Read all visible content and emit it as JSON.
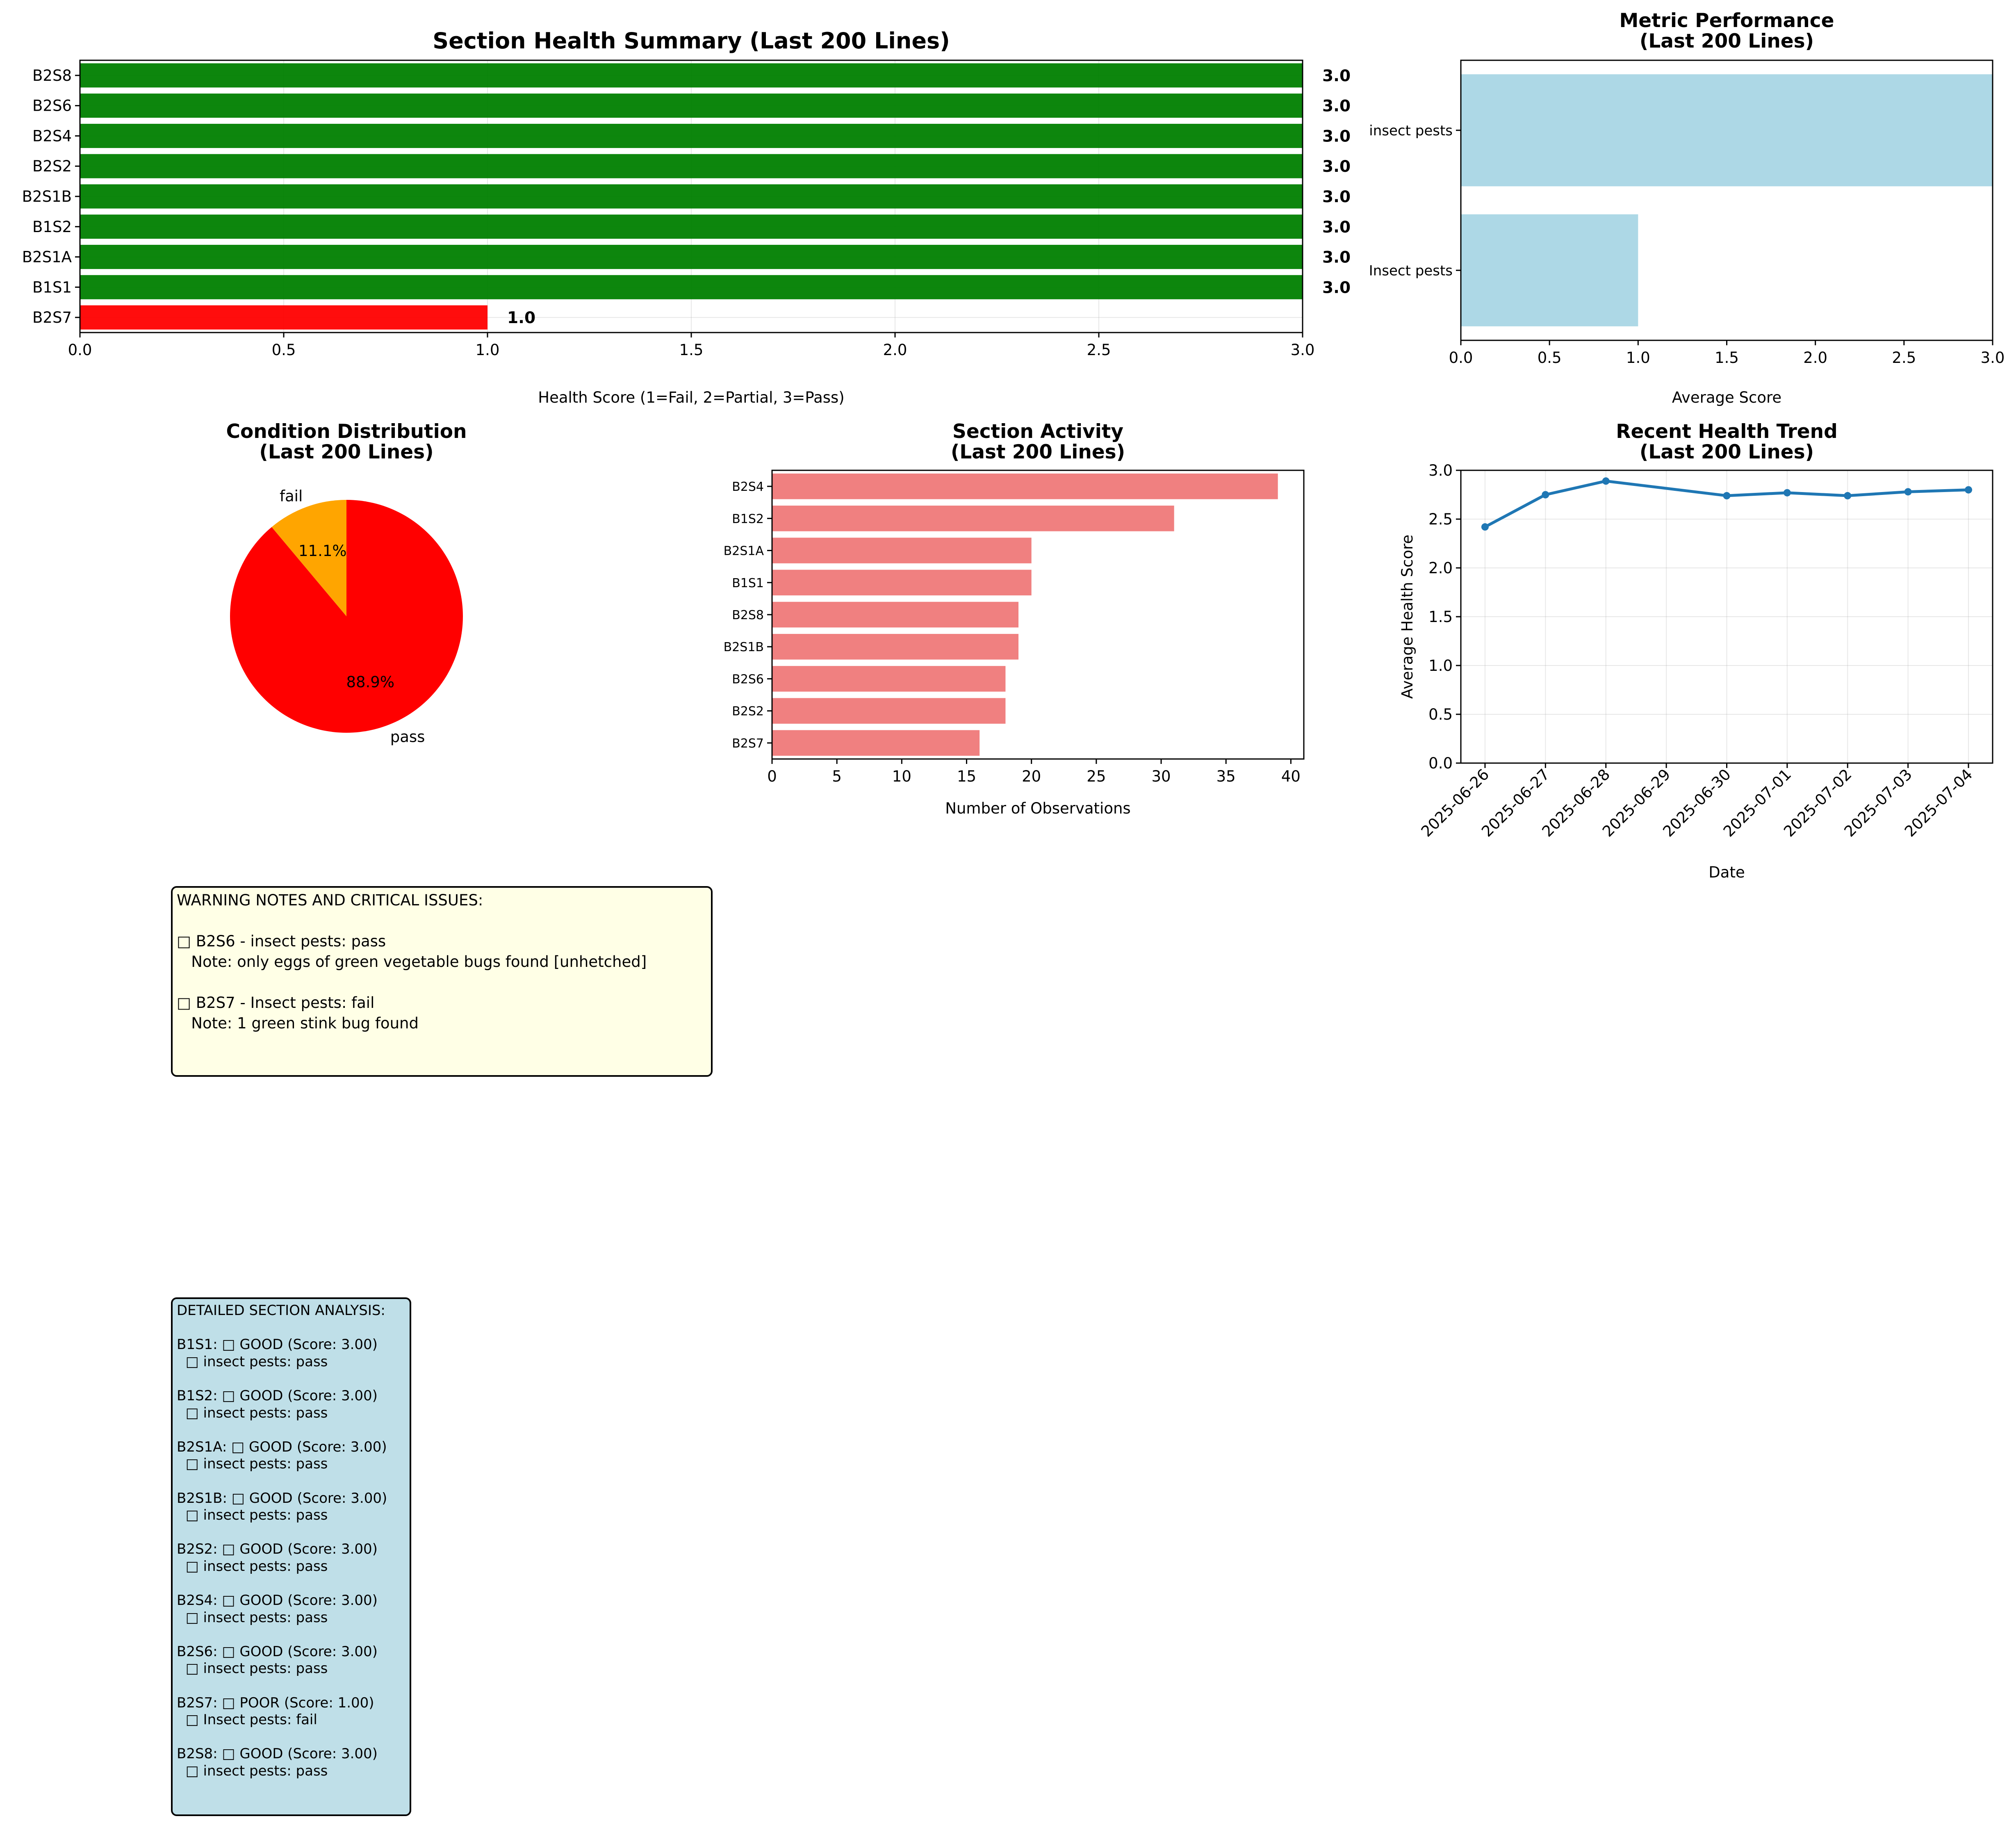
{
  "chart_data": [
    {
      "type": "bar",
      "orientation": "horizontal",
      "title": "Section Health Summary (Last 200 Lines)",
      "xlabel": "Health Score (1=Fail, 2=Partial, 3=Pass)",
      "ylabel": "",
      "xlim": [
        0,
        3
      ],
      "xticks": [
        "0.0",
        "0.5",
        "1.0",
        "1.5",
        "2.0",
        "2.5",
        "3.0"
      ],
      "categories": [
        "B2S8",
        "B2S6",
        "B2S4",
        "B2S2",
        "B2S1B",
        "B1S2",
        "B2S1A",
        "B1S1",
        "B2S7"
      ],
      "values": [
        3.0,
        3.0,
        3.0,
        3.0,
        3.0,
        3.0,
        3.0,
        3.0,
        1.0
      ],
      "value_labels": [
        "3.0",
        "3.0",
        "3.0",
        "3.0",
        "3.0",
        "3.0",
        "3.0",
        "3.0",
        "1.0"
      ],
      "colors": [
        "#008000",
        "#008000",
        "#008000",
        "#008000",
        "#008000",
        "#008000",
        "#008000",
        "#008000",
        "#ff0000"
      ],
      "grid": true
    },
    {
      "type": "bar",
      "orientation": "horizontal",
      "title": "Metric Performance\n(Last 200 Lines)",
      "xlabel": "Average Score",
      "ylabel": "",
      "xlim": [
        0,
        3
      ],
      "xticks": [
        "0.0",
        "0.5",
        "1.0",
        "1.5",
        "2.0",
        "2.5",
        "3.0"
      ],
      "categories": [
        "insect pests",
        "Insect pests"
      ],
      "values": [
        3.0,
        1.0
      ],
      "color": "#add8e6"
    },
    {
      "type": "pie",
      "title": "Condition Distribution\n(Last 200 Lines)",
      "labels": [
        "fail",
        "pass"
      ],
      "values": [
        11.1,
        88.9
      ],
      "pct_labels": [
        "11.1%",
        "88.9%"
      ],
      "colors": [
        "#ffa500",
        "#ff0000"
      ]
    },
    {
      "type": "bar",
      "orientation": "horizontal",
      "title": "Section Activity\n(Last 200 Lines)",
      "xlabel": "Number of Observations",
      "ylabel": "",
      "xlim": [
        0,
        41
      ],
      "xticks": [
        0,
        5,
        10,
        15,
        20,
        25,
        30,
        35,
        40
      ],
      "categories": [
        "B2S4",
        "B1S2",
        "B2S1A",
        "B1S1",
        "B2S8",
        "B2S1B",
        "B2S6",
        "B2S2",
        "B2S7"
      ],
      "values": [
        39,
        31,
        20,
        20,
        19,
        19,
        18,
        18,
        16
      ],
      "color": "#f08080"
    },
    {
      "type": "line",
      "title": "Recent Health Trend\n(Last 200 Lines)",
      "xlabel": "Date",
      "ylabel": "Average Health Score",
      "ylim": [
        0,
        3
      ],
      "yticks": [
        "0.0",
        "0.5",
        "1.0",
        "1.5",
        "2.0",
        "2.5",
        "3.0"
      ],
      "xticks": [
        "2025-06-26",
        "2025-06-27",
        "2025-06-28",
        "2025-06-29",
        "2025-06-30",
        "2025-07-01",
        "2025-07-02",
        "2025-07-03",
        "2025-07-04"
      ],
      "x": [
        "2025-06-26",
        "2025-06-27",
        "2025-06-28",
        "2025-06-30",
        "2025-07-01",
        "2025-07-02",
        "2025-07-03",
        "2025-07-04"
      ],
      "y": [
        2.42,
        2.75,
        2.89,
        2.74,
        2.77,
        2.74,
        2.78,
        2.8
      ],
      "color": "#1f77b4",
      "grid": true
    }
  ],
  "warning_notes": {
    "title": "WARNING NOTES AND CRITICAL ISSUES:",
    "lines": [
      "",
      "□ B2S6 - insect pests: pass",
      "   Note: only eggs of green vegetable bugs found [unhetched]",
      "",
      "□ B2S7 - Insect pests: fail",
      "   Note: 1 green stink bug found"
    ]
  },
  "detailed_analysis": {
    "title": "DETAILED SECTION ANALYSIS:",
    "lines": [
      "",
      "B1S1: □ GOOD (Score: 3.00)",
      "  □ insect pests: pass",
      "",
      "B1S2: □ GOOD (Score: 3.00)",
      "  □ insect pests: pass",
      "",
      "B2S1A: □ GOOD (Score: 3.00)",
      "  □ insect pests: pass",
      "",
      "B2S1B: □ GOOD (Score: 3.00)",
      "  □ insect pests: pass",
      "",
      "B2S2: □ GOOD (Score: 3.00)",
      "  □ insect pests: pass",
      "",
      "B2S4: □ GOOD (Score: 3.00)",
      "  □ insect pests: pass",
      "",
      "B2S6: □ GOOD (Score: 3.00)",
      "  □ insect pests: pass",
      "",
      "B2S7: □ POOR (Score: 1.00)",
      "  □ Insect pests: fail",
      "",
      "B2S8: □ GOOD (Score: 3.00)",
      "  □ insect pests: pass"
    ]
  }
}
